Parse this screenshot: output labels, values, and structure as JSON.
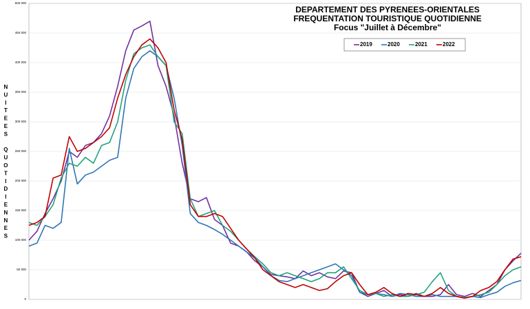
{
  "chart_data": {
    "type": "line",
    "title": [
      "DEPARTEMENT DES PYRENEES-ORIENTALES",
      "FREQUENTATION TOURISTIQUE QUOTIDIENNE",
      "Focus \"Juillet à Décembre\""
    ],
    "y_label": "NUITEES QUOTIDIENNES",
    "categories": [
      null,
      null,
      null,
      null,
      null,
      null,
      null,
      null,
      null,
      null,
      null,
      null,
      null,
      null,
      null,
      null,
      null,
      null,
      null,
      null,
      null,
      null,
      null,
      null,
      null,
      null,
      null,
      null,
      null,
      null,
      null,
      null,
      null,
      null,
      null,
      null,
      null,
      null,
      null,
      null,
      null,
      null,
      null,
      null,
      null,
      null,
      null,
      null,
      null,
      null,
      null,
      null,
      null,
      null,
      null,
      null,
      null,
      null,
      null,
      null,
      null,
      null
    ],
    "ylim": [
      0,
      500000
    ],
    "yticks": [
      0,
      {
        "value": 50000,
        "label": "50 000"
      },
      {
        "value": 100000,
        "label": "100 000"
      },
      {
        "value": 150000,
        "label": "150 000"
      },
      {
        "value": 200000,
        "label": "200 000"
      },
      {
        "value": 250000,
        "label": "250 000"
      },
      {
        "value": 300000,
        "label": "300 000"
      },
      {
        "value": 350000,
        "label": "350 000"
      },
      {
        "value": 400000,
        "label": "400 000"
      },
      {
        "value": 450000,
        "label": "450 000"
      },
      {
        "value": 500000,
        "label": "500 000"
      }
    ],
    "grid": true,
    "series": [
      {
        "name": "2019",
        "color": "#7030a0",
        "values": [
          100000,
          115000,
          145000,
          170000,
          200000,
          250000,
          240000,
          260000,
          265000,
          280000,
          310000,
          360000,
          420000,
          455000,
          462000,
          470000,
          395000,
          360000,
          310000,
          230000,
          170000,
          165000,
          172000,
          135000,
          125000,
          95000,
          90000,
          80000,
          65000,
          55000,
          42000,
          40000,
          38000,
          35000,
          48000,
          40000,
          45000,
          38000,
          35000,
          48000,
          45000,
          12000,
          5000,
          10000,
          15000,
          5000,
          8000,
          5000,
          10000,
          5000,
          5000,
          8000,
          25000,
          8000,
          5000,
          10000,
          5000,
          15000,
          25000,
          50000,
          65000,
          78000
        ]
      },
      {
        "name": "2020",
        "color": "#2e75b6",
        "values": [
          90000,
          95000,
          125000,
          120000,
          130000,
          255000,
          195000,
          210000,
          215000,
          225000,
          235000,
          240000,
          340000,
          390000,
          410000,
          420000,
          410000,
          395000,
          340000,
          260000,
          145000,
          130000,
          125000,
          118000,
          110000,
          100000,
          90000,
          80000,
          70000,
          55000,
          40000,
          32000,
          30000,
          35000,
          40000,
          45000,
          50000,
          55000,
          60000,
          50000,
          40000,
          12000,
          8000,
          10000,
          8000,
          5000,
          10000,
          8000,
          5000,
          5000,
          8000,
          5000,
          5000,
          5000,
          3000,
          5000,
          3000,
          8000,
          12000,
          22000,
          28000,
          32000
        ]
      },
      {
        "name": "2021",
        "color": "#1fa37a",
        "values": [
          130000,
          125000,
          140000,
          160000,
          205000,
          230000,
          225000,
          240000,
          230000,
          260000,
          265000,
          300000,
          370000,
          415000,
          425000,
          430000,
          410000,
          395000,
          300000,
          280000,
          170000,
          140000,
          145000,
          150000,
          125000,
          115000,
          100000,
          85000,
          72000,
          60000,
          45000,
          40000,
          45000,
          40000,
          35000,
          30000,
          35000,
          45000,
          45000,
          55000,
          35000,
          15000,
          8000,
          10000,
          5000,
          8000,
          5000,
          5000,
          8000,
          12000,
          30000,
          45000,
          15000,
          5000,
          3000,
          5000,
          8000,
          12000,
          25000,
          40000,
          50000,
          55000
        ]
      },
      {
        "name": "2022",
        "color": "#c00000",
        "values": [
          125000,
          130000,
          140000,
          205000,
          210000,
          275000,
          250000,
          255000,
          265000,
          275000,
          290000,
          340000,
          380000,
          410000,
          430000,
          440000,
          425000,
          400000,
          320000,
          270000,
          160000,
          140000,
          140000,
          145000,
          140000,
          120000,
          100000,
          85000,
          70000,
          50000,
          40000,
          30000,
          25000,
          20000,
          25000,
          20000,
          15000,
          18000,
          30000,
          40000,
          45000,
          25000,
          8000,
          12000,
          20000,
          10000,
          5000,
          10000,
          8000,
          5000,
          10000,
          20000,
          10000,
          5000,
          2000,
          5000,
          15000,
          20000,
          30000,
          50000,
          68000,
          72000
        ]
      }
    ]
  }
}
